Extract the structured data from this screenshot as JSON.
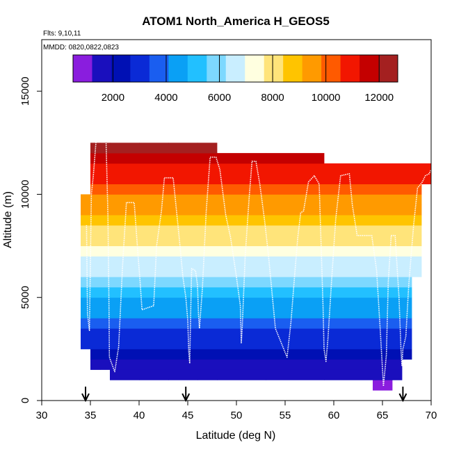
{
  "chart_data": {
    "type": "heatmap",
    "title": "ATOM1 North_America H_GEOS5",
    "flights_note": "Flts: 9,10,11",
    "dates_note": "MMDD: 0820,0822,0823",
    "xlabel": "Latitude (deg N)",
    "ylabel": "Altitude (m)",
    "xlim": [
      30,
      70
    ],
    "ylim": [
      0,
      17500
    ],
    "x_ticks": [
      30,
      35,
      40,
      45,
      50,
      55,
      60,
      65,
      70
    ],
    "y_ticks": [
      0,
      5000,
      10000,
      15000
    ],
    "y_tick_labels": [
      "0",
      "5000",
      "10000",
      "15000"
    ],
    "colorbar": {
      "range": [
        500,
        12700
      ],
      "ticks": [
        2000,
        4000,
        6000,
        8000,
        10000,
        12000
      ],
      "tick_labels": [
        "2000",
        "4000",
        "6000",
        "8000",
        "10000",
        "12000"
      ]
    },
    "grid": false,
    "cell_columns": [
      {
        "lat": [
          34,
          35
        ],
        "alt": [
          2500,
          10000
        ]
      },
      {
        "lat": [
          35,
          36
        ],
        "alt": [
          1500,
          12500
        ]
      },
      {
        "lat": [
          36,
          37
        ],
        "alt": [
          1500,
          12500
        ]
      },
      {
        "lat": [
          37,
          40
        ],
        "alt": [
          1000,
          12500
        ]
      },
      {
        "lat": [
          40,
          43
        ],
        "alt": [
          1000,
          12500
        ]
      },
      {
        "lat": [
          43,
          46
        ],
        "alt": [
          1000,
          12500
        ]
      },
      {
        "lat": [
          46,
          48
        ],
        "alt": [
          1000,
          12500
        ]
      },
      {
        "lat": [
          48,
          53
        ],
        "alt": [
          1000,
          12000
        ]
      },
      {
        "lat": [
          53,
          59
        ],
        "alt": [
          1000,
          12000
        ]
      },
      {
        "lat": [
          59,
          64
        ],
        "alt": [
          1000,
          11500
        ]
      },
      {
        "lat": [
          64,
          65
        ],
        "alt": [
          500,
          11500
        ]
      },
      {
        "lat": [
          65,
          66
        ],
        "alt": [
          500,
          11500
        ]
      },
      {
        "lat": [
          66,
          67
        ],
        "alt": [
          1000,
          11500
        ]
      },
      {
        "lat": [
          67,
          68
        ],
        "alt": [
          2000,
          11500
        ]
      },
      {
        "lat": [
          68,
          69
        ],
        "alt": [
          6000,
          11500
        ]
      },
      {
        "lat": [
          69,
          70
        ],
        "alt": [
          10500,
          11500
        ]
      }
    ],
    "flight_track": [
      [
        34.6,
        8500
      ],
      [
        34.7,
        4200
      ],
      [
        34.9,
        3400
      ],
      [
        35.1,
        10000
      ],
      [
        35.3,
        10900
      ],
      [
        35.6,
        12700
      ],
      [
        36.1,
        12700
      ],
      [
        36.6,
        12700
      ],
      [
        36.8,
        9000
      ],
      [
        36.9,
        5000
      ],
      [
        36.95,
        2100
      ],
      [
        37.5,
        1400
      ],
      [
        37.9,
        2600
      ],
      [
        38.3,
        6500
      ],
      [
        38.7,
        9600
      ],
      [
        39.5,
        9600
      ],
      [
        39.9,
        7000
      ],
      [
        40.1,
        5800
      ],
      [
        40.3,
        4400
      ],
      [
        41.5,
        4600
      ],
      [
        41.8,
        7500
      ],
      [
        42.3,
        9200
      ],
      [
        42.6,
        10800
      ],
      [
        43.5,
        10800
      ],
      [
        44.1,
        8000
      ],
      [
        44.5,
        6000
      ],
      [
        44.8,
        5000
      ],
      [
        45.0,
        3900
      ],
      [
        45.1,
        2400
      ],
      [
        45.2,
        1800
      ],
      [
        45.3,
        4200
      ],
      [
        45.4,
        6400
      ],
      [
        45.8,
        6300
      ],
      [
        46.0,
        5600
      ],
      [
        46.1,
        4200
      ],
      [
        46.2,
        3500
      ],
      [
        46.5,
        5400
      ],
      [
        46.9,
        9200
      ],
      [
        47.3,
        11800
      ],
      [
        47.9,
        11800
      ],
      [
        48.3,
        11200
      ],
      [
        48.9,
        9000
      ],
      [
        49.4,
        7900
      ],
      [
        50.0,
        6000
      ],
      [
        50.4,
        4600
      ],
      [
        50.5,
        2800
      ],
      [
        50.6,
        3600
      ],
      [
        50.9,
        7000
      ],
      [
        51.3,
        9800
      ],
      [
        51.6,
        11600
      ],
      [
        52.0,
        11600
      ],
      [
        52.4,
        10500
      ],
      [
        52.9,
        8700
      ],
      [
        53.3,
        7000
      ],
      [
        53.7,
        5000
      ],
      [
        54.0,
        3500
      ],
      [
        55.2,
        2100
      ],
      [
        55.6,
        3800
      ],
      [
        56.0,
        6200
      ],
      [
        56.3,
        7900
      ],
      [
        56.6,
        9100
      ],
      [
        56.9,
        9200
      ],
      [
        57.4,
        10600
      ],
      [
        58.0,
        10900
      ],
      [
        58.5,
        10500
      ],
      [
        58.7,
        7500
      ],
      [
        58.9,
        4500
      ],
      [
        59.0,
        2500
      ],
      [
        59.2,
        1900
      ],
      [
        59.4,
        3000
      ],
      [
        59.8,
        6000
      ],
      [
        60.2,
        8800
      ],
      [
        60.7,
        10900
      ],
      [
        61.6,
        11000
      ],
      [
        61.9,
        9500
      ],
      [
        62.4,
        8000
      ],
      [
        63.1,
        8000
      ],
      [
        63.9,
        8000
      ],
      [
        64.4,
        6300
      ],
      [
        64.8,
        3200
      ],
      [
        65.1,
        700
      ],
      [
        65.4,
        2200
      ],
      [
        65.6,
        5800
      ],
      [
        65.9,
        8000
      ],
      [
        66.3,
        8000
      ],
      [
        66.7,
        5000
      ],
      [
        66.9,
        2500
      ],
      [
        67.0,
        1700
      ],
      [
        67.1,
        2500
      ],
      [
        67.4,
        3100
      ],
      [
        67.7,
        5600
      ],
      [
        68.2,
        8500
      ],
      [
        68.6,
        10300
      ],
      [
        69.1,
        10600
      ],
      [
        69.4,
        10900
      ],
      [
        69.8,
        11000
      ],
      [
        70.0,
        11200
      ]
    ],
    "arrow_latitudes": [
      34.5,
      44.8,
      67.1
    ]
  },
  "colors": {
    "scale": [
      "#8a1dde",
      "#1a0fbd",
      "#0010b4",
      "#0a2ad6",
      "#1a5ef0",
      "#0aa0f5",
      "#22c0ff",
      "#7dd8ff",
      "#c9eeff",
      "#ffffe0",
      "#ffe47a",
      "#ffc400",
      "#ff9a00",
      "#ff5a00",
      "#f21600",
      "#c40000",
      "#a42020"
    ],
    "track": "#ffffff",
    "axis": "#000000"
  }
}
